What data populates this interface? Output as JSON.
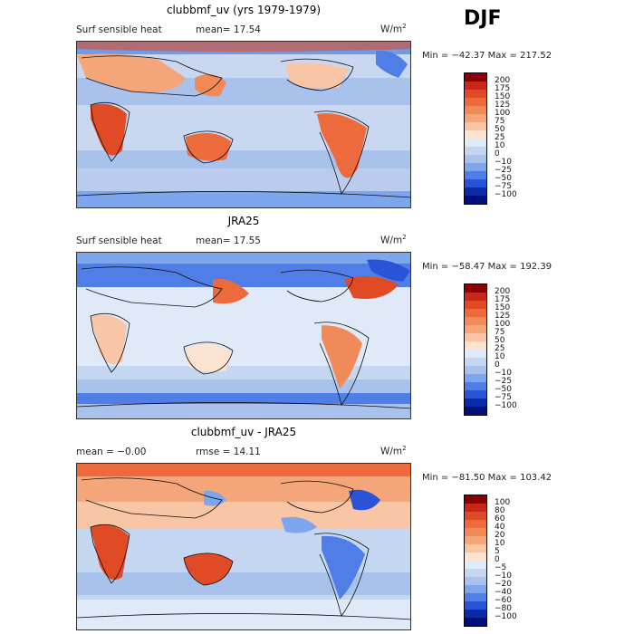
{
  "season": "DJF",
  "units_text": "W/m",
  "units_sup": "2",
  "panels": [
    {
      "title": "clubbmf_uv (yrs 1979-1979)",
      "left_label": "Surf sensible heat",
      "mid_label": "mean=  17.54",
      "minmax": "Min = −42.37 Max = 217.52",
      "levels": [
        "200",
        "175",
        "150",
        "125",
        "100",
        "75",
        "50",
        "25",
        "10",
        "0",
        "−10",
        "−25",
        "−50",
        "−75",
        "−100"
      ],
      "colors": [
        "#8b0000",
        "#c8281a",
        "#e04a24",
        "#ec6a3c",
        "#f08a58",
        "#f4a67a",
        "#f8c6a4",
        "#fbe3cf",
        "#dfe9f7",
        "#c5d6f0",
        "#a9c2ec",
        "#7ea6ec",
        "#4f7fe6",
        "#2a54d8",
        "#0a2aa8",
        "#00107a"
      ]
    },
    {
      "title": "JRA25",
      "left_label": "Surf sensible heat",
      "mid_label": "mean=  17.55",
      "minmax": "Min = −58.47 Max = 192.39",
      "levels": [
        "200",
        "175",
        "150",
        "125",
        "100",
        "75",
        "50",
        "25",
        "10",
        "0",
        "−10",
        "−25",
        "−50",
        "−75",
        "−100"
      ],
      "colors": [
        "#8b0000",
        "#c8281a",
        "#e04a24",
        "#ec6a3c",
        "#f08a58",
        "#f4a67a",
        "#f8c6a4",
        "#fbe3cf",
        "#dfe9f7",
        "#c5d6f0",
        "#a9c2ec",
        "#7ea6ec",
        "#4f7fe6",
        "#2a54d8",
        "#0a2aa8",
        "#00107a"
      ]
    },
    {
      "title": "clubbmf_uv - JRA25",
      "left_label": "mean =  −0.00",
      "mid_label": "rmse =  14.11",
      "minmax": "Min = −81.50 Max = 103.42",
      "levels": [
        "100",
        "80",
        "60",
        "40",
        "20",
        "10",
        "5",
        "0",
        "−5",
        "−10",
        "−20",
        "−40",
        "−60",
        "−80",
        "−100"
      ],
      "colors": [
        "#8b0000",
        "#c8281a",
        "#e04a24",
        "#ec6a3c",
        "#f08a58",
        "#f4a67a",
        "#f8c6a4",
        "#fbe3cf",
        "#dfe9f7",
        "#c5d6f0",
        "#a9c2ec",
        "#7ea6ec",
        "#4f7fe6",
        "#2a54d8",
        "#0a2aa8",
        "#00107a"
      ]
    }
  ]
}
